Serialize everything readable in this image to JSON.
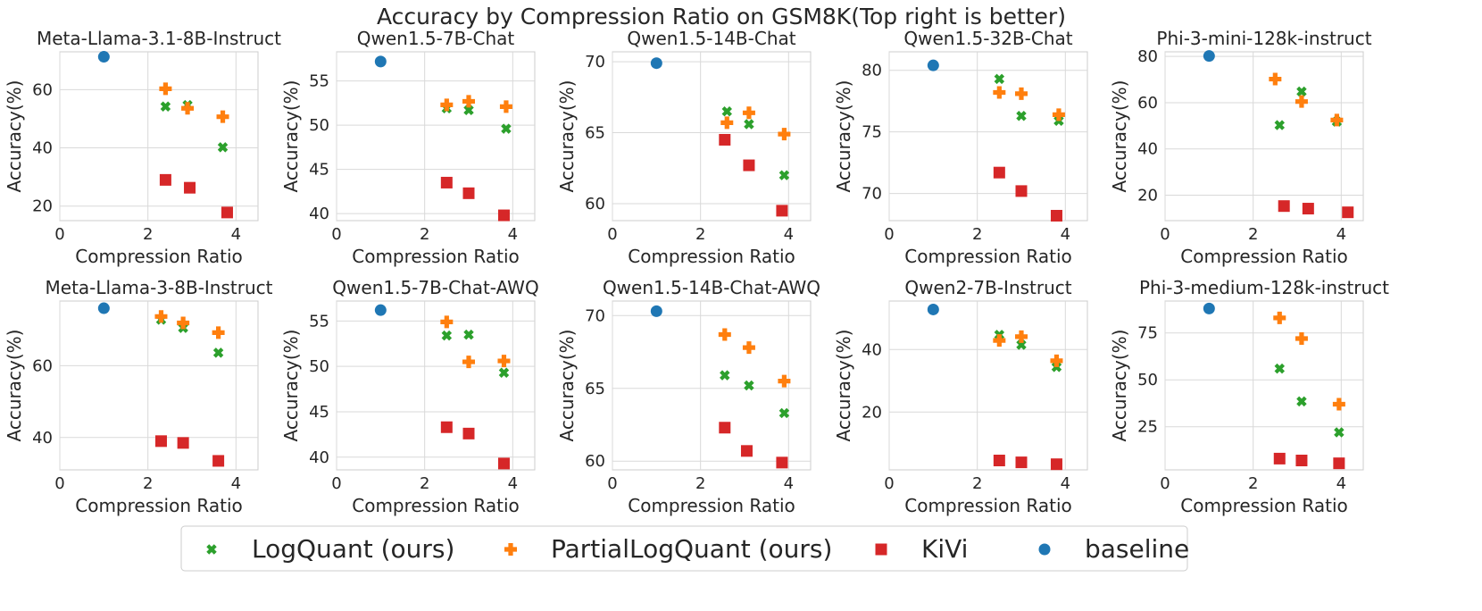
{
  "figure": {
    "title": "Accuracy by Compression Ratio on GSM8K(Top right is better)"
  },
  "legend": [
    {
      "key": "logquant",
      "label": "LogQuant (ours)",
      "color": "#2ca02c",
      "marker": "x"
    },
    {
      "key": "partial",
      "label": "PartialLogQuant (ours)",
      "color": "#ff7f0e",
      "marker": "plus"
    },
    {
      "key": "kivi",
      "label": "KiVi",
      "color": "#d62728",
      "marker": "square"
    },
    {
      "key": "baseline",
      "label": "baseline",
      "color": "#1f77b4",
      "marker": "circle"
    }
  ],
  "chart_data": [
    {
      "type": "scatter",
      "title": "Meta-Llama-3.1-8B-Instruct",
      "xlabel": "Compression Ratio",
      "ylabel": "Accuracy(%)",
      "xlim": [
        0,
        4.5
      ],
      "ylim": [
        15,
        73
      ],
      "xticks": [
        0,
        2,
        4
      ],
      "yticks": [
        20,
        40,
        60
      ],
      "series": [
        {
          "key": "logquant",
          "name": "LogQuant (ours)",
          "points": [
            [
              2.4,
              54.2
            ],
            [
              2.9,
              54.7
            ],
            [
              3.7,
              40.2
            ]
          ]
        },
        {
          "key": "partial",
          "name": "PartialLogQuant (ours)",
          "points": [
            [
              2.4,
              60.3
            ],
            [
              2.9,
              53.6
            ],
            [
              3.7,
              50.7
            ]
          ]
        },
        {
          "key": "kivi",
          "name": "KiVi",
          "points": [
            [
              2.4,
              29.0
            ],
            [
              2.95,
              26.3
            ],
            [
              3.8,
              17.8
            ]
          ]
        },
        {
          "key": "baseline",
          "name": "baseline",
          "points": [
            [
              1.0,
              71.3
            ]
          ]
        }
      ]
    },
    {
      "type": "scatter",
      "title": "Qwen1.5-7B-Chat",
      "xlabel": "Compression Ratio",
      "ylabel": "Accuracy(%)",
      "xlim": [
        0,
        4.5
      ],
      "ylim": [
        39.2,
        58.3
      ],
      "xticks": [
        0,
        2,
        4
      ],
      "yticks": [
        40,
        45,
        50,
        55
      ],
      "series": [
        {
          "key": "logquant",
          "name": "LogQuant (ours)",
          "points": [
            [
              2.5,
              51.9
            ],
            [
              3.0,
              51.7
            ],
            [
              3.85,
              49.6
            ]
          ]
        },
        {
          "key": "partial",
          "name": "PartialLogQuant (ours)",
          "points": [
            [
              2.5,
              52.3
            ],
            [
              3.0,
              52.7
            ],
            [
              3.85,
              52.1
            ]
          ]
        },
        {
          "key": "kivi",
          "name": "KiVi",
          "points": [
            [
              2.5,
              43.5
            ],
            [
              3.0,
              42.3
            ],
            [
              3.8,
              39.8
            ]
          ]
        },
        {
          "key": "baseline",
          "name": "baseline",
          "points": [
            [
              1.0,
              57.2
            ]
          ]
        }
      ]
    },
    {
      "type": "scatter",
      "title": "Qwen1.5-14B-Chat",
      "xlabel": "Compression Ratio",
      "ylabel": "Accuracy(%)",
      "xlim": [
        0,
        4.5
      ],
      "ylim": [
        58.8,
        70.7
      ],
      "xticks": [
        0,
        2,
        4
      ],
      "yticks": [
        60,
        65,
        70
      ],
      "series": [
        {
          "key": "logquant",
          "name": "LogQuant (ours)",
          "points": [
            [
              2.6,
              66.5
            ],
            [
              3.1,
              65.6
            ],
            [
              3.9,
              62.0
            ]
          ]
        },
        {
          "key": "partial",
          "name": "PartialLogQuant (ours)",
          "points": [
            [
              2.6,
              65.7
            ],
            [
              3.1,
              66.4
            ],
            [
              3.9,
              64.9
            ]
          ]
        },
        {
          "key": "kivi",
          "name": "KiVi",
          "points": [
            [
              2.55,
              64.5
            ],
            [
              3.1,
              62.7
            ],
            [
              3.85,
              59.5
            ]
          ]
        },
        {
          "key": "baseline",
          "name": "baseline",
          "points": [
            [
              1.0,
              69.9
            ]
          ]
        }
      ]
    },
    {
      "type": "scatter",
      "title": "Qwen1.5-32B-Chat",
      "xlabel": "Compression Ratio",
      "ylabel": "Accuracy(%)",
      "xlim": [
        0,
        4.5
      ],
      "ylim": [
        67.8,
        81.5
      ],
      "xticks": [
        0,
        2,
        4
      ],
      "yticks": [
        70,
        75,
        80
      ],
      "series": [
        {
          "key": "logquant",
          "name": "LogQuant (ours)",
          "points": [
            [
              2.5,
              79.3
            ],
            [
              3.0,
              76.3
            ],
            [
              3.85,
              75.9
            ]
          ]
        },
        {
          "key": "partial",
          "name": "PartialLogQuant (ours)",
          "points": [
            [
              2.5,
              78.2
            ],
            [
              3.0,
              78.1
            ],
            [
              3.85,
              76.4
            ]
          ]
        },
        {
          "key": "kivi",
          "name": "KiVi",
          "points": [
            [
              2.5,
              71.7
            ],
            [
              3.0,
              70.2
            ],
            [
              3.8,
              68.2
            ]
          ]
        },
        {
          "key": "baseline",
          "name": "baseline",
          "points": [
            [
              1.0,
              80.4
            ]
          ]
        }
      ]
    },
    {
      "type": "scatter",
      "title": "Phi-3-mini-128k-instruct",
      "xlabel": "Compression Ratio",
      "ylabel": "Accuracy(%)",
      "xlim": [
        0,
        4.5
      ],
      "ylim": [
        9,
        82
      ],
      "xticks": [
        0,
        2,
        4
      ],
      "yticks": [
        20,
        40,
        60,
        80
      ],
      "series": [
        {
          "key": "logquant",
          "name": "LogQuant (ours)",
          "points": [
            [
              2.6,
              50.3
            ],
            [
              3.1,
              64.8
            ],
            [
              3.9,
              51.8
            ]
          ]
        },
        {
          "key": "partial",
          "name": "PartialLogQuant (ours)",
          "points": [
            [
              2.5,
              70.2
            ],
            [
              3.1,
              60.5
            ],
            [
              3.9,
              52.5
            ]
          ]
        },
        {
          "key": "kivi",
          "name": "KiVi",
          "points": [
            [
              2.7,
              15.3
            ],
            [
              3.25,
              14.2
            ],
            [
              4.15,
              12.6
            ]
          ]
        },
        {
          "key": "baseline",
          "name": "baseline",
          "points": [
            [
              1.0,
              80.2
            ]
          ]
        }
      ]
    },
    {
      "type": "scatter",
      "title": "Meta-Llama-3-8B-Instruct",
      "xlabel": "Compression Ratio",
      "ylabel": "Accuracy(%)",
      "xlim": [
        0,
        4.5
      ],
      "ylim": [
        31,
        78
      ],
      "xticks": [
        0,
        2,
        4
      ],
      "yticks": [
        40,
        60
      ],
      "series": [
        {
          "key": "logquant",
          "name": "LogQuant (ours)",
          "points": [
            [
              2.3,
              72.8
            ],
            [
              2.8,
              70.5
            ],
            [
              3.6,
              63.6
            ]
          ]
        },
        {
          "key": "partial",
          "name": "PartialLogQuant (ours)",
          "points": [
            [
              2.3,
              73.7
            ],
            [
              2.8,
              71.9
            ],
            [
              3.6,
              69.2
            ]
          ]
        },
        {
          "key": "kivi",
          "name": "KiVi",
          "points": [
            [
              2.3,
              39.0
            ],
            [
              2.8,
              38.5
            ],
            [
              3.6,
              33.5
            ]
          ]
        },
        {
          "key": "baseline",
          "name": "baseline",
          "points": [
            [
              1.0,
              76.0
            ]
          ]
        }
      ]
    },
    {
      "type": "scatter",
      "title": "Qwen1.5-7B-Chat-AWQ",
      "xlabel": "Compression Ratio",
      "ylabel": "Accuracy(%)",
      "xlim": [
        0,
        4.5
      ],
      "ylim": [
        38.6,
        57.2
      ],
      "xticks": [
        0,
        2,
        4
      ],
      "yticks": [
        40,
        45,
        50,
        55
      ],
      "series": [
        {
          "key": "logquant",
          "name": "LogQuant (ours)",
          "points": [
            [
              2.5,
              53.4
            ],
            [
              3.0,
              53.5
            ],
            [
              3.8,
              49.3
            ]
          ]
        },
        {
          "key": "partial",
          "name": "PartialLogQuant (ours)",
          "points": [
            [
              2.5,
              54.9
            ],
            [
              3.0,
              50.5
            ],
            [
              3.8,
              50.6
            ]
          ]
        },
        {
          "key": "kivi",
          "name": "KiVi",
          "points": [
            [
              2.5,
              43.3
            ],
            [
              3.0,
              42.6
            ],
            [
              3.8,
              39.3
            ]
          ]
        },
        {
          "key": "baseline",
          "name": "baseline",
          "points": [
            [
              1.0,
              56.2
            ]
          ]
        }
      ]
    },
    {
      "type": "scatter",
      "title": "Qwen1.5-14B-Chat-AWQ",
      "xlabel": "Compression Ratio",
      "ylabel": "Accuracy(%)",
      "xlim": [
        0,
        4.5
      ],
      "ylim": [
        59.4,
        71.0
      ],
      "xticks": [
        0,
        2,
        4
      ],
      "yticks": [
        60,
        65,
        70
      ],
      "series": [
        {
          "key": "logquant",
          "name": "LogQuant (ours)",
          "points": [
            [
              2.55,
              65.9
            ],
            [
              3.1,
              65.2
            ],
            [
              3.9,
              63.3
            ]
          ]
        },
        {
          "key": "partial",
          "name": "PartialLogQuant (ours)",
          "points": [
            [
              2.55,
              68.7
            ],
            [
              3.1,
              67.8
            ],
            [
              3.9,
              65.5
            ]
          ]
        },
        {
          "key": "kivi",
          "name": "KiVi",
          "points": [
            [
              2.55,
              62.3
            ],
            [
              3.05,
              60.7
            ],
            [
              3.85,
              59.9
            ]
          ]
        },
        {
          "key": "baseline",
          "name": "baseline",
          "points": [
            [
              1.0,
              70.3
            ]
          ]
        }
      ]
    },
    {
      "type": "scatter",
      "title": "Qwen2-7B-Instruct",
      "xlabel": "Compression Ratio",
      "ylabel": "Accuracy(%)",
      "xlim": [
        0,
        4.5
      ],
      "ylim": [
        1.5,
        55.5
      ],
      "xticks": [
        0,
        2,
        4
      ],
      "yticks": [
        20,
        40
      ],
      "series": [
        {
          "key": "logquant",
          "name": "LogQuant (ours)",
          "points": [
            [
              2.5,
              44.7
            ],
            [
              3.0,
              41.5
            ],
            [
              3.8,
              34.4
            ]
          ]
        },
        {
          "key": "partial",
          "name": "PartialLogQuant (ours)",
          "points": [
            [
              2.5,
              42.9
            ],
            [
              3.0,
              44.1
            ],
            [
              3.8,
              36.4
            ]
          ]
        },
        {
          "key": "kivi",
          "name": "KiVi",
          "points": [
            [
              2.5,
              4.5
            ],
            [
              3.0,
              3.9
            ],
            [
              3.8,
              3.3
            ]
          ]
        },
        {
          "key": "baseline",
          "name": "baseline",
          "points": [
            [
              1.0,
              52.8
            ]
          ]
        }
      ]
    },
    {
      "type": "scatter",
      "title": "Phi-3-medium-128k-instruct",
      "xlabel": "Compression Ratio",
      "ylabel": "Accuracy(%)",
      "xlim": [
        0,
        4.5
      ],
      "ylim": [
        2,
        92
      ],
      "xticks": [
        0,
        2,
        4
      ],
      "yticks": [
        25,
        50,
        75
      ],
      "series": [
        {
          "key": "logquant",
          "name": "LogQuant (ours)",
          "points": [
            [
              2.6,
              56.0
            ],
            [
              3.1,
              38.5
            ],
            [
              3.95,
              22.0
            ]
          ]
        },
        {
          "key": "partial",
          "name": "PartialLogQuant (ours)",
          "points": [
            [
              2.6,
              83.0
            ],
            [
              3.1,
              72.0
            ],
            [
              3.95,
              37.0
            ]
          ]
        },
        {
          "key": "kivi",
          "name": "KiVi",
          "points": [
            [
              2.6,
              8.0
            ],
            [
              3.1,
              7.0
            ],
            [
              3.95,
              5.5
            ]
          ]
        },
        {
          "key": "baseline",
          "name": "baseline",
          "points": [
            [
              1.0,
              88.0
            ]
          ]
        }
      ]
    }
  ]
}
